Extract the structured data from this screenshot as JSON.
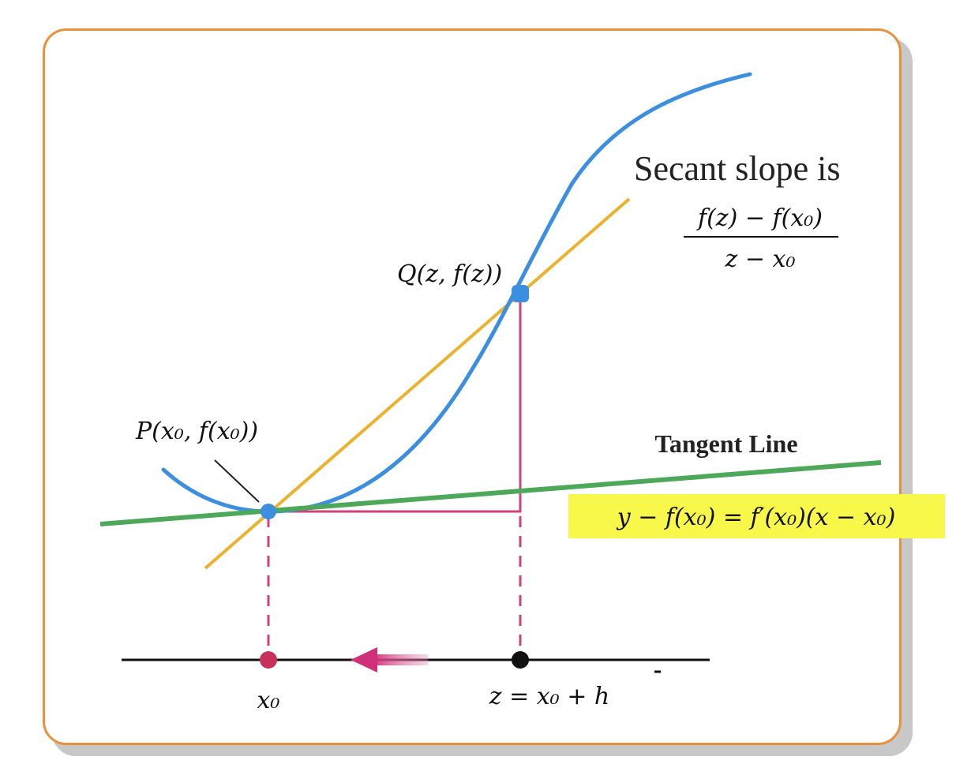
{
  "labels": {
    "point_p": "P(x₀, f(x₀))",
    "point_q": "Q(z, f(z))",
    "secant_title": "Secant slope is",
    "secant_numerator": "f(z) − f(x₀)",
    "secant_denominator": "z − x₀",
    "tangent_title": "Tangent Line",
    "tangent_equation": "y − f(x₀) = f′(x₀)(x − x₀)",
    "axis_x0": "x₀",
    "axis_z": "z = x₀ + h"
  },
  "colors": {
    "card_border": "#E8913A",
    "curve": "#3B8EE0",
    "secant": "#EBB22E",
    "tangent": "#4DA85A",
    "guides": "#D0407A",
    "highlight": "#F8F84A",
    "axis": "#111111"
  }
}
